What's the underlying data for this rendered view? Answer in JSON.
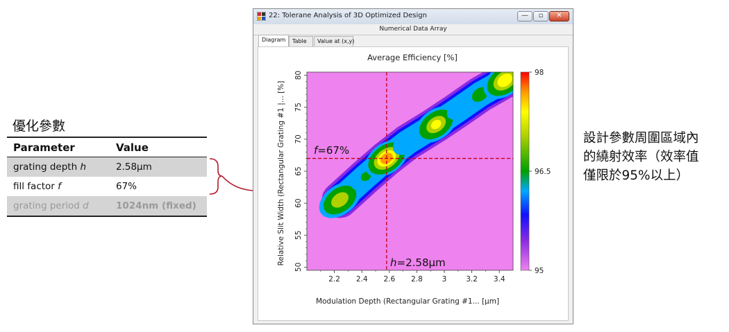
{
  "params": {
    "title": "優化參數",
    "header": {
      "parameter": "Parameter",
      "value": "Value"
    },
    "rows": [
      {
        "name": "grating depth ",
        "symbol": "h",
        "value": "2.58μm"
      },
      {
        "name": "fill factor ",
        "symbol": "f",
        "value": "67%"
      },
      {
        "name": "grating period ",
        "symbol": "d",
        "value": "1024nm (fixed)"
      }
    ]
  },
  "window": {
    "title": "22: Tolerane Analysis of 3D Optimized Design",
    "subtitle": "Numerical Data Array",
    "tabs": [
      "Diagram",
      "Table",
      "Value at (x,y)"
    ],
    "active_tab": "Diagram",
    "controls": {
      "minimize": "—",
      "maximize": "▫",
      "close": "✕"
    }
  },
  "note": {
    "lines": [
      "設計參數周圍區域內",
      "的繞射效率（效率值",
      "僅限於95%以上）"
    ]
  },
  "chart_data": {
    "type": "heatmap",
    "title": "Average Efficiency  [%]",
    "xlabel": "Modulation Depth (Rectangular Grating #1... [μm]",
    "ylabel": "Relative Slit Width (Rectangular Grating #1 |... [%]",
    "xlim": [
      2.0,
      3.5
    ],
    "ylim": [
      49.5,
      80.5
    ],
    "xticks": [
      "2.2",
      "2.4",
      "2.6",
      "2.8",
      "3",
      "3.2",
      "3.4"
    ],
    "yticks": [
      "50",
      "55",
      "60",
      "65",
      "70",
      "75",
      "80"
    ],
    "colorbar": {
      "min": 95,
      "max": 98,
      "ticks": [
        "98",
        "96.5",
        "95"
      ]
    },
    "background_color": "#ee82ee",
    "crosshair": {
      "x": 2.58,
      "y": 67,
      "color": "#c0001a"
    },
    "crosshair_labels": {
      "f_sym": "f",
      "f_val": "=67%",
      "h_sym": "h",
      "h_val": "=2.58μm"
    },
    "peaks": [
      {
        "x": 2.24,
        "y": 60.5,
        "value": 97.3
      },
      {
        "x": 2.43,
        "y": 64.2,
        "value": 96.5
      },
      {
        "x": 2.58,
        "y": 67.0,
        "value": 97.8
      },
      {
        "x": 2.73,
        "y": 69.5,
        "value": 96.4
      },
      {
        "x": 2.94,
        "y": 72.3,
        "value": 97.4
      },
      {
        "x": 3.1,
        "y": 74.6,
        "value": 96.3
      },
      {
        "x": 3.26,
        "y": 77.0,
        "value": 96.6
      },
      {
        "x": 3.44,
        "y": 79.2,
        "value": 97.6
      }
    ]
  }
}
